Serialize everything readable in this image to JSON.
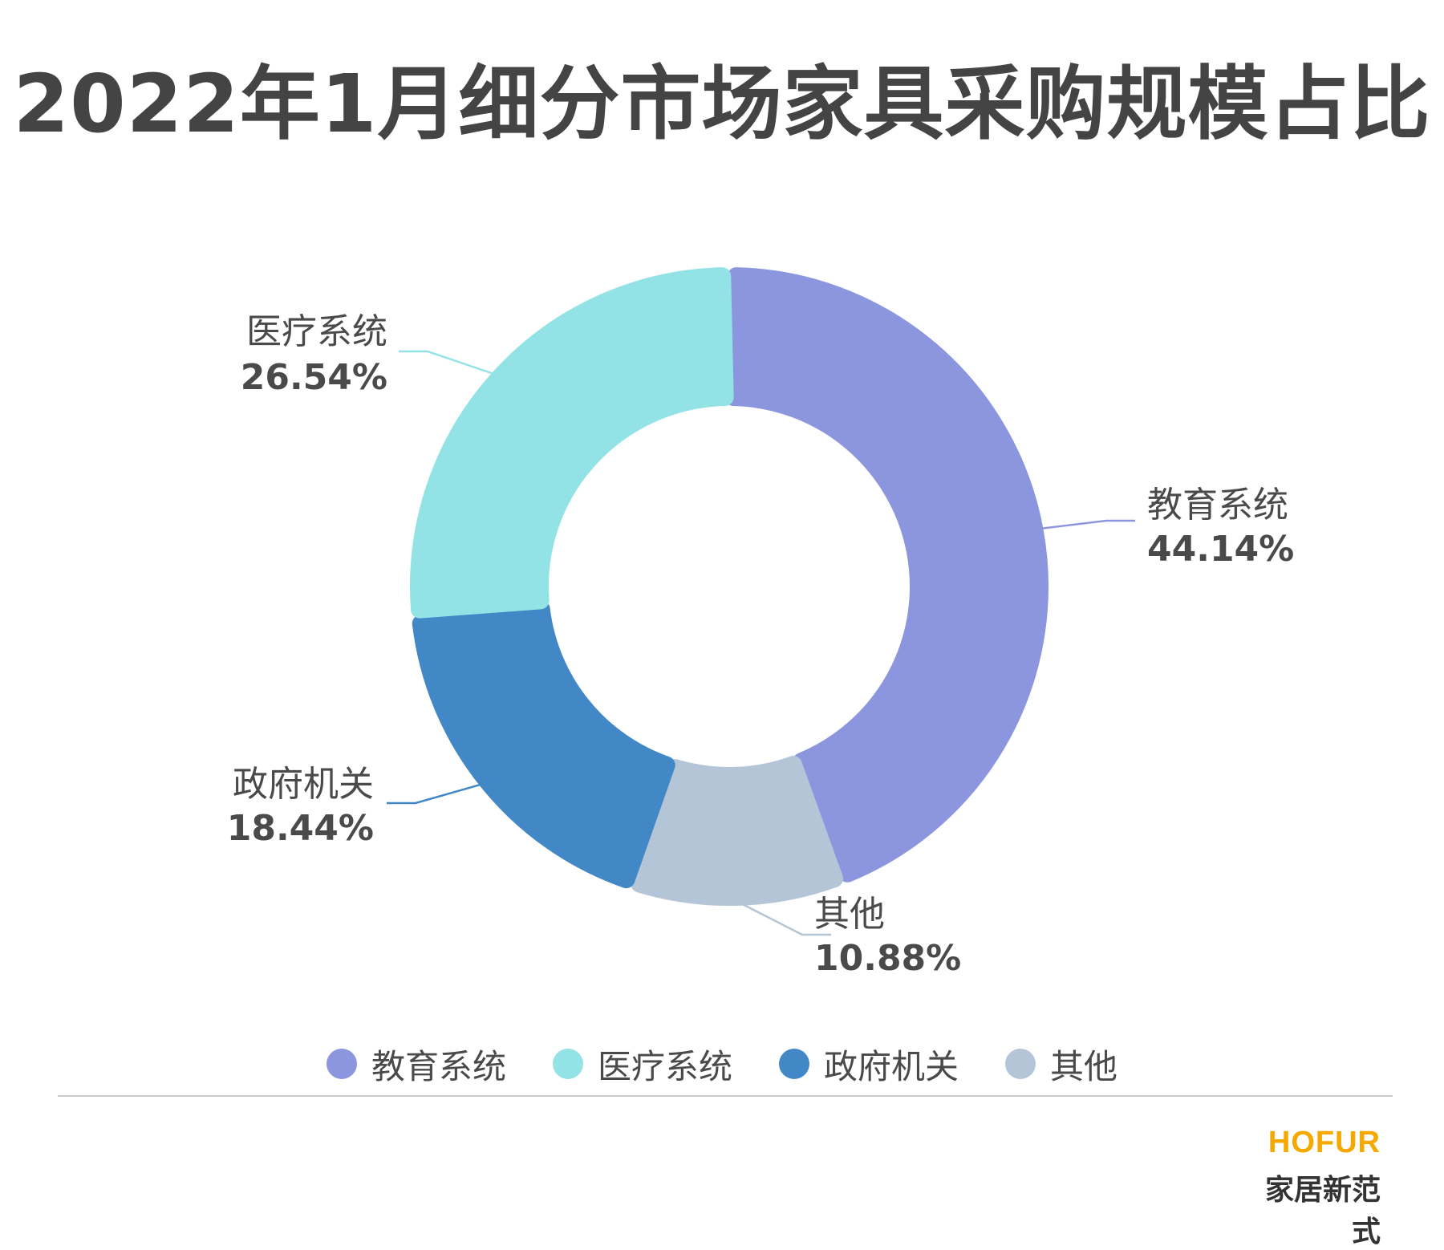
{
  "title": "2022年1月细分市场家具采购规模占比",
  "chart_data": {
    "type": "pie",
    "variant": "donut",
    "title": "2022年1月细分市场家具采购规模占比",
    "unit": "%",
    "series": [
      {
        "name": "教育系统",
        "value": 44.14,
        "label": "44.14%",
        "color": "#8c96de"
      },
      {
        "name": "其他",
        "value": 10.88,
        "label": "10.88%",
        "color": "#b4c5d8"
      },
      {
        "name": "政府机关",
        "value": 18.44,
        "label": "18.44%",
        "color": "#4388c6"
      },
      {
        "name": "医疗系统",
        "value": 26.54,
        "label": "26.54%",
        "color": "#93e3e6"
      }
    ],
    "legend": {
      "position": "bottom",
      "items": [
        "教育系统",
        "医疗系统",
        "政府机关",
        "其他"
      ]
    }
  },
  "brand": {
    "name_en": "HOFUR",
    "name_cn": "家居新范式"
  }
}
